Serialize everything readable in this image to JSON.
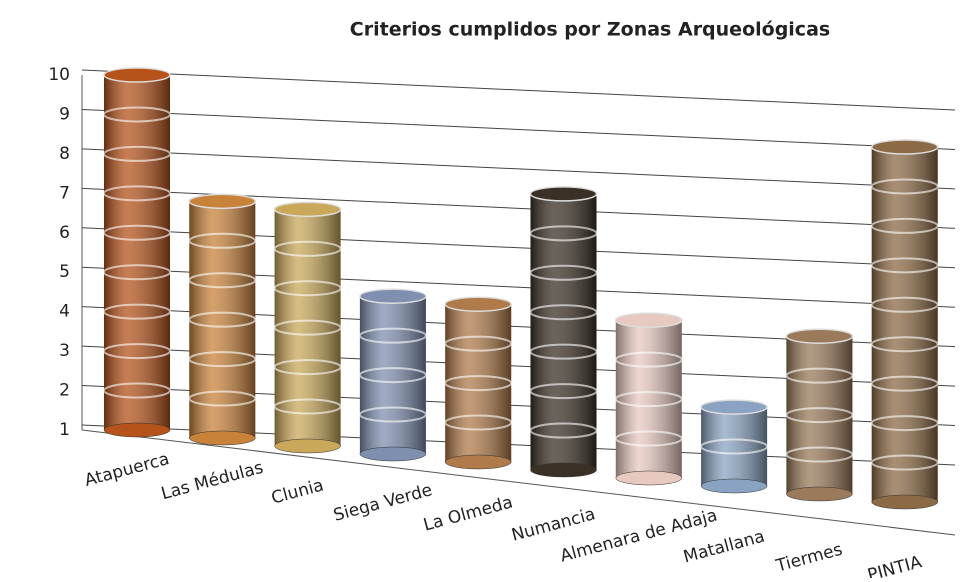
{
  "chart_data": {
    "type": "bar3d",
    "title": "Criterios cumplidos por Zonas Arqueológicas",
    "categories": [
      "Atapuerca",
      "Las Médulas",
      "Clunia",
      "Siega Verde",
      "La Olmeda",
      "Numancia",
      "Almenara de Adaja",
      "Matallana",
      "Tiermes",
      "PINTIA"
    ],
    "values": [
      10,
      7,
      7,
      5,
      5,
      8,
      5,
      3,
      5,
      10
    ],
    "colors": [
      "#b5531a",
      "#c9823a",
      "#c9a85a",
      "#7f8fb0",
      "#b07a4a",
      "#3a3025",
      "#e8c9c0",
      "#8aa3c2",
      "#9a7a5a",
      "#8c6a45"
    ],
    "ylim": [
      1,
      10
    ],
    "yticks": [
      1,
      2,
      3,
      4,
      5,
      6,
      7,
      8,
      9,
      10
    ],
    "grid": true
  }
}
